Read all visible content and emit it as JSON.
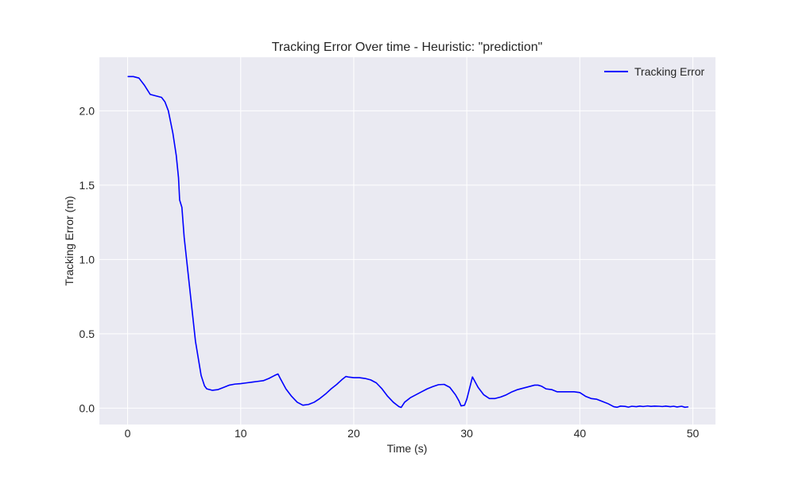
{
  "chart_data": {
    "type": "line",
    "title": "Tracking Error Over time - Heuristic: \"prediction\"",
    "xlabel": "Time (s)",
    "ylabel": "Tracking Error (m)",
    "xlim": [
      -2.5,
      52
    ],
    "ylim": [
      -0.11,
      2.36
    ],
    "xticks": [
      0,
      10,
      20,
      30,
      40,
      50
    ],
    "xtick_labels": [
      "0",
      "10",
      "20",
      "30",
      "40",
      "50"
    ],
    "yticks": [
      0.0,
      0.5,
      1.0,
      1.5,
      2.0
    ],
    "ytick_labels": [
      "0.0",
      "0.5",
      "1.0",
      "1.5",
      "2.0"
    ],
    "grid": true,
    "legend_position": "top-right",
    "colors": {
      "background": "#eaeaf2",
      "grid": "#ffffff",
      "line": "#0000ff"
    },
    "series": [
      {
        "name": "Tracking Error",
        "x": [
          0,
          0.5,
          1.0,
          1.5,
          2.0,
          2.5,
          3.0,
          3.3,
          3.6,
          4.0,
          4.3,
          4.5,
          4.6,
          4.8,
          5.0,
          5.5,
          6.0,
          6.5,
          6.8,
          7.0,
          7.5,
          8.0,
          8.5,
          9.0,
          9.5,
          10.0,
          10.5,
          11.0,
          11.5,
          12.0,
          12.5,
          13.0,
          13.3,
          13.5,
          14.0,
          14.5,
          15.0,
          15.5,
          16.0,
          16.5,
          17.0,
          17.5,
          18.0,
          18.5,
          19.0,
          19.3,
          19.5,
          20.0,
          20.5,
          21.0,
          21.5,
          22.0,
          22.5,
          23.0,
          23.5,
          24.0,
          24.2,
          24.5,
          25.0,
          25.5,
          26.0,
          26.5,
          27.0,
          27.5,
          28.0,
          28.5,
          29.0,
          29.3,
          29.5,
          29.8,
          30.0,
          30.5,
          31.0,
          31.5,
          32.0,
          32.5,
          33.0,
          33.5,
          34.0,
          34.5,
          35.0,
          35.5,
          36.0,
          36.3,
          36.6,
          37.0,
          37.5,
          38.0,
          38.5,
          39.0,
          39.5,
          40.0,
          40.3,
          40.5,
          41.0,
          41.5,
          42.0,
          42.5,
          43.0,
          43.3,
          43.6,
          44.0,
          44.3,
          44.6,
          45.0,
          45.3,
          45.6,
          46.0,
          46.3,
          46.6,
          47.0,
          47.3,
          47.6,
          48.0,
          48.3,
          48.6,
          49.0,
          49.3,
          49.6
        ],
        "values": [
          2.23,
          2.23,
          2.22,
          2.17,
          2.11,
          2.1,
          2.09,
          2.06,
          2.0,
          1.85,
          1.7,
          1.55,
          1.4,
          1.35,
          1.15,
          0.8,
          0.45,
          0.22,
          0.15,
          0.13,
          0.12,
          0.125,
          0.14,
          0.155,
          0.162,
          0.165,
          0.17,
          0.175,
          0.18,
          0.185,
          0.2,
          0.22,
          0.23,
          0.2,
          0.13,
          0.08,
          0.04,
          0.02,
          0.025,
          0.04,
          0.065,
          0.095,
          0.13,
          0.16,
          0.195,
          0.213,
          0.21,
          0.205,
          0.205,
          0.2,
          0.19,
          0.17,
          0.13,
          0.08,
          0.04,
          0.01,
          0.005,
          0.04,
          0.07,
          0.09,
          0.11,
          0.13,
          0.145,
          0.158,
          0.16,
          0.14,
          0.09,
          0.05,
          0.015,
          0.02,
          0.06,
          0.21,
          0.14,
          0.09,
          0.065,
          0.065,
          0.075,
          0.09,
          0.11,
          0.125,
          0.135,
          0.145,
          0.155,
          0.155,
          0.148,
          0.13,
          0.125,
          0.11,
          0.11,
          0.11,
          0.11,
          0.105,
          0.09,
          0.08,
          0.065,
          0.06,
          0.045,
          0.03,
          0.01,
          0.006,
          0.014,
          0.012,
          0.007,
          0.013,
          0.01,
          0.014,
          0.011,
          0.015,
          0.012,
          0.014,
          0.013,
          0.011,
          0.014,
          0.01,
          0.013,
          0.008,
          0.013,
          0.006,
          0.009
        ]
      }
    ]
  }
}
